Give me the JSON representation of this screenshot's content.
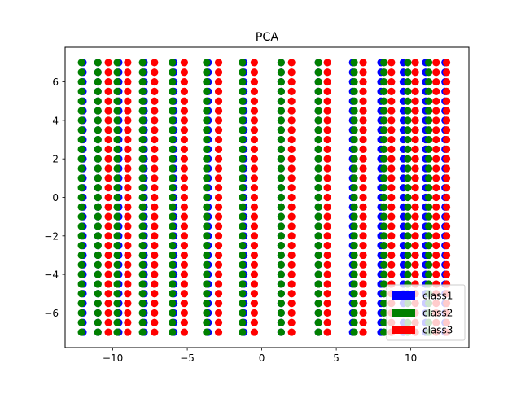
{
  "chart_data": {
    "type": "scatter",
    "title": "PCA",
    "xlabel": "",
    "ylabel": "",
    "xlim": [
      -13.2,
      13.9
    ],
    "ylim": [
      -7.8,
      7.8
    ],
    "xticks": [
      -10,
      -5,
      0,
      5,
      10
    ],
    "xtick_labels": [
      "−10",
      "−5",
      "0",
      "5",
      "10"
    ],
    "yticks": [
      -6,
      -4,
      -2,
      0,
      2,
      4,
      6
    ],
    "ytick_labels": [
      "−6",
      "−4",
      "−2",
      "0",
      "2",
      "4",
      "6"
    ],
    "grid": false,
    "legend_position": "lower right",
    "legend_handle": "patch",
    "y_values": [
      -7,
      -6.5,
      -6,
      -5.5,
      -5,
      -4.5,
      -4,
      -3.5,
      -3,
      -2.5,
      -2,
      -1.5,
      -1,
      -0.5,
      0,
      0.5,
      1,
      1.5,
      2,
      2.5,
      3,
      3.5,
      4,
      4.5,
      5,
      5.5,
      6,
      6.5,
      7
    ],
    "series": [
      {
        "name": "class1",
        "color": "#0000ff",
        "x_columns": [
          -12,
          -11,
          -9.6,
          -7.9,
          -5.9,
          -3.6,
          -1.2,
          1.3,
          3.8,
          6.1,
          8.0,
          9.5,
          11.0,
          12.3
        ]
      },
      {
        "name": "class2",
        "color": "#008000",
        "x_columns": [
          -12.1,
          -11.0,
          -9.7,
          -8.0,
          -6.0,
          -3.7,
          -1.3,
          1.3,
          3.8,
          6.2,
          8.2,
          9.8,
          11.2
        ]
      },
      {
        "name": "class3",
        "color": "#ff0000",
        "x_columns": [
          -10.3,
          -9.0,
          -7.2,
          -5.2,
          -2.9,
          -0.5,
          2.0,
          4.4,
          6.8,
          8.7,
          10.3,
          11.7,
          12.4
        ]
      }
    ]
  }
}
